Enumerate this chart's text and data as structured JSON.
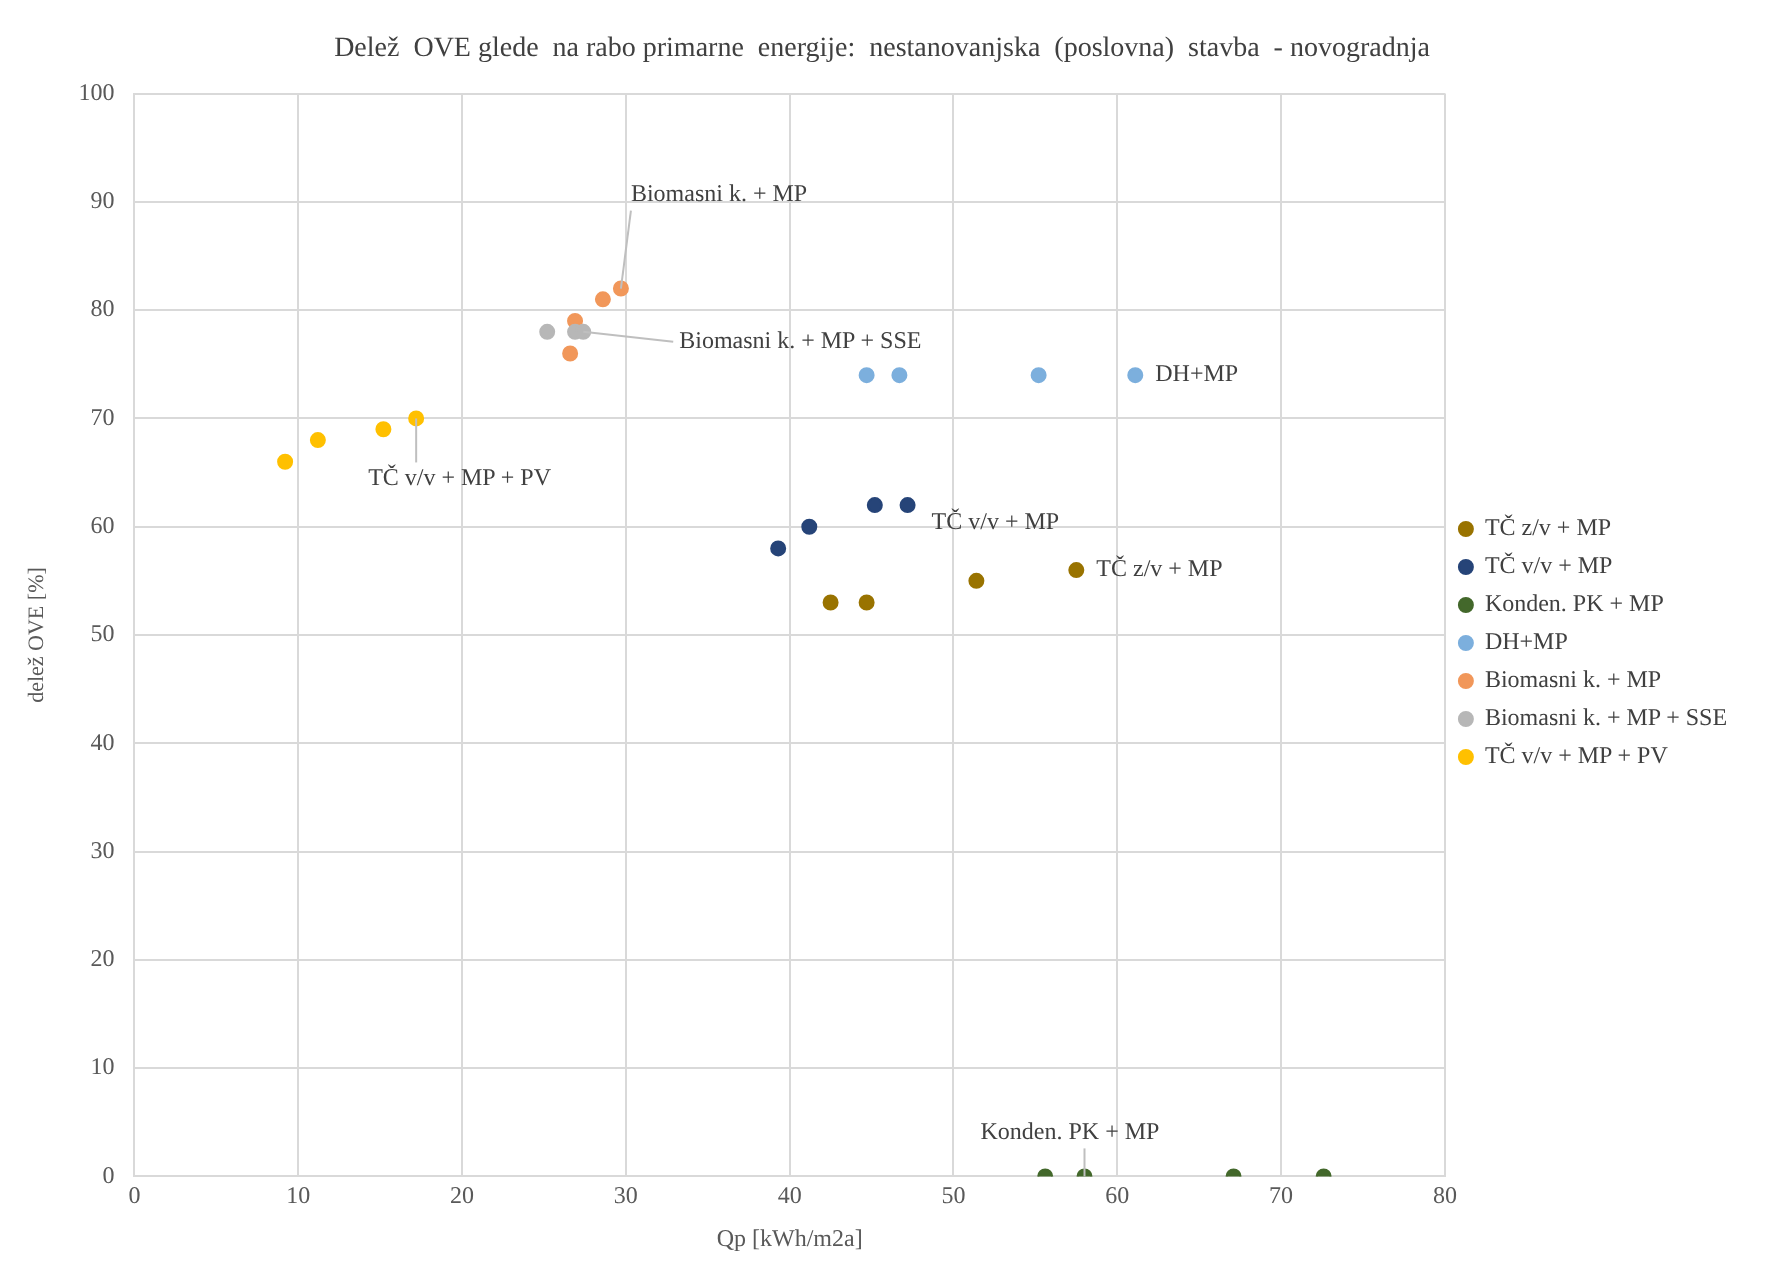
{
  "chart_data": {
    "type": "scatter",
    "title": "Delež  OVE glede  na rabo primarne  energije:  nestanovanjska  (poslovna)  stavba  - novogradnja",
    "xlabel": "Qp [kWh/m2a]",
    "ylabel": "delež OVE [%]",
    "xlim": [
      0,
      80
    ],
    "xticks": [
      0,
      10,
      20,
      30,
      40,
      50,
      60,
      70,
      80
    ],
    "ylim": [
      0,
      100
    ],
    "yticks": [
      0,
      10,
      20,
      30,
      40,
      50,
      60,
      70,
      80,
      90,
      100
    ],
    "grid": true,
    "legend": "right",
    "marker": "circle",
    "series": [
      {
        "name": "TČ z/v + MP",
        "color": "#997300",
        "x": [
          42.5,
          44.7,
          51.4,
          57.5
        ],
        "values": [
          53,
          53,
          55,
          56
        ]
      },
      {
        "name": "TČ v/v + MP",
        "color": "#264478",
        "x": [
          39.3,
          41.2,
          45.2,
          47.2
        ],
        "values": [
          58,
          60,
          62,
          62
        ]
      },
      {
        "name": "Konden. PK + MP",
        "color": "#43682b",
        "x": [
          55.6,
          58,
          67.1,
          72.6
        ],
        "values": [
          0,
          0,
          0,
          0
        ]
      },
      {
        "name": "DH+MP",
        "color": "#7cafdd",
        "x": [
          44.7,
          46.7,
          55.2,
          61.1
        ],
        "values": [
          74,
          74,
          74,
          74
        ]
      },
      {
        "name": "Biomasni k. + MP",
        "color": "#f1975a",
        "x": [
          26.6,
          26.9,
          28.6,
          29.7
        ],
        "values": [
          76,
          79,
          81,
          82
        ]
      },
      {
        "name": "Biomasni k. + MP + SSE",
        "color": "#b7b7b7",
        "x": [
          25.2,
          26.9,
          27.4
        ],
        "values": [
          78,
          78,
          78
        ]
      },
      {
        "name": "TČ v/v + MP + PV",
        "color": "#ffc000",
        "x": [
          9.2,
          11.2,
          15.2,
          17.2
        ],
        "values": [
          66,
          68,
          69,
          70
        ]
      }
    ],
    "annotations": [
      {
        "text": "Biomasni k. + MP",
        "x": 29.7,
        "y": 82
      },
      {
        "text": "Biomasni k. + MP + SSE",
        "x": 27.4,
        "y": 78
      },
      {
        "text": "TČ v/v + MP + PV",
        "x": 17.2,
        "y": 70
      },
      {
        "text": "TČ v/v + MP",
        "x": 47.2,
        "y": 62
      },
      {
        "text": "TČ z/v + MP",
        "x": 57.5,
        "y": 56
      },
      {
        "text": "DH+MP",
        "x": 61.1,
        "y": 74
      },
      {
        "text": "Konden. PK + MP",
        "x": 58,
        "y": 0
      }
    ]
  }
}
